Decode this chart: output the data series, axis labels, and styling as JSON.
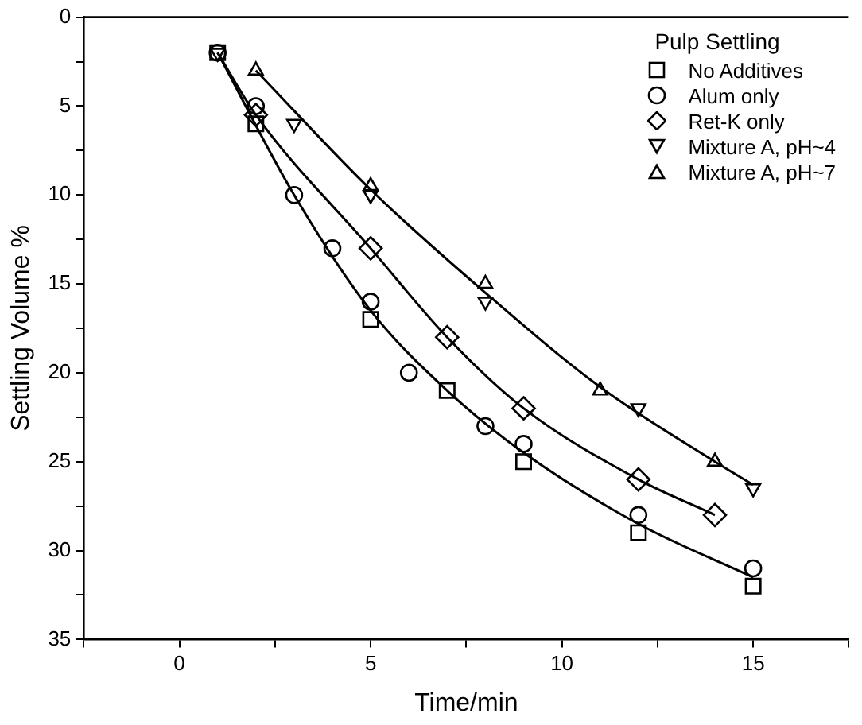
{
  "chart_data": {
    "type": "scatter",
    "xlabel": "Time/min",
    "ylabel": "Settling Volume %",
    "legend_title": "Pulp Settling",
    "legend": "top right",
    "grid": false,
    "xlim": [
      -2.5,
      17.5
    ],
    "xticks": [
      {
        "value": -2.5,
        "label": null
      },
      0,
      {
        "value": 2.5,
        "label": null
      },
      5,
      {
        "value": 7.5,
        "label": null
      },
      10,
      {
        "value": 12.5,
        "label": null
      },
      15,
      {
        "value": 17.5,
        "label": null
      }
    ],
    "ylim": [
      35,
      0
    ],
    "yticks": [
      0,
      {
        "value": 2.5,
        "label": null
      },
      5,
      {
        "value": 7.5,
        "label": null
      },
      10,
      {
        "value": 12.5,
        "label": null
      },
      15,
      {
        "value": 17.5,
        "label": null
      },
      20,
      {
        "value": 22.5,
        "label": null
      },
      25,
      {
        "value": 27.5,
        "label": null
      },
      30,
      {
        "value": 32.5,
        "label": null
      },
      35
    ],
    "series": [
      {
        "name": "No Additives",
        "color": "#000000",
        "marker": "square",
        "x": [
          1,
          2,
          5,
          7,
          9,
          12,
          15
        ],
        "values": [
          2,
          6,
          17,
          21,
          25,
          29,
          32
        ]
      },
      {
        "name": "Alum only",
        "color": "#000000",
        "marker": "circle",
        "x": [
          1,
          2,
          3,
          4,
          5,
          6,
          8,
          9,
          12,
          15
        ],
        "values": [
          2,
          5,
          10,
          13,
          16,
          20,
          23,
          24,
          28,
          31
        ]
      },
      {
        "name": "Ret-K only",
        "color": "#000000",
        "marker": "diamond",
        "x": [
          2,
          5,
          7,
          9,
          12,
          14
        ],
        "values": [
          5.5,
          13,
          18,
          22,
          26,
          28
        ]
      },
      {
        "name": "Mixture A, pH~4",
        "color": "#000000",
        "marker": "triangle-down",
        "x": [
          1,
          3,
          5,
          8,
          12,
          15
        ],
        "values": [
          2,
          6,
          10,
          16,
          22,
          26.5
        ]
      },
      {
        "name": "Mixture A, pH~7",
        "color": "#000000",
        "marker": "triangle",
        "x": [
          2,
          5,
          8,
          11,
          14
        ],
        "values": [
          3,
          9.5,
          15,
          21,
          25
        ]
      },
      {
        "type": "line",
        "color": "#000000",
        "marker": "none",
        "x": [
          2,
          5,
          8,
          11,
          14,
          15
        ],
        "values": [
          3,
          9.7,
          15.5,
          20.8,
          25,
          26.3
        ]
      },
      {
        "type": "line",
        "color": "#000000",
        "marker": "none",
        "x": [
          1,
          2,
          5,
          7,
          9,
          12,
          14
        ],
        "values": [
          2,
          5.5,
          13,
          18,
          22,
          26,
          28
        ]
      },
      {
        "type": "line",
        "color": "#000000",
        "marker": "none",
        "x": [
          1,
          3,
          5,
          7,
          9,
          12,
          15
        ],
        "values": [
          2,
          10,
          16.5,
          21,
          24.5,
          28.5,
          31.5
        ]
      }
    ]
  }
}
